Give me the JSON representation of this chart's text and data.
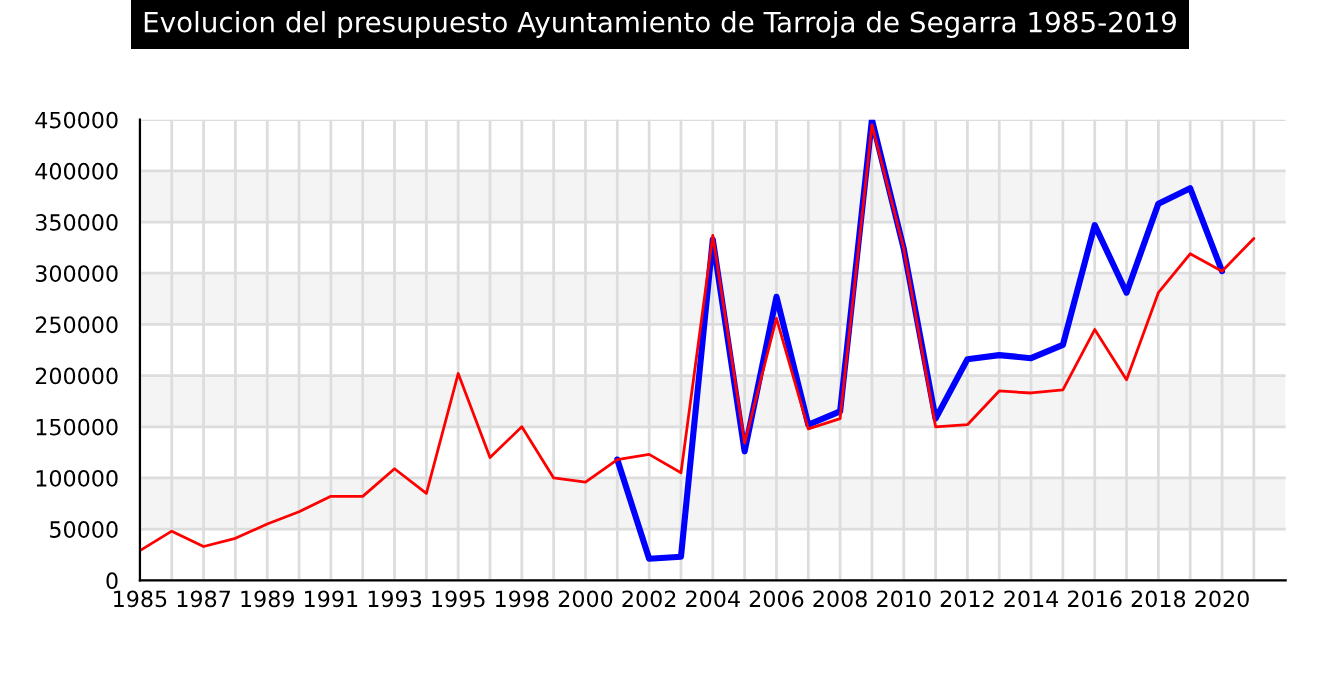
{
  "chart_data": {
    "type": "line",
    "title": "Evolucion del presupuesto Ayuntamiento de Tarroja de Segarra 1985-2019",
    "categories": [
      "1985",
      null,
      "1987",
      null,
      "1989",
      null,
      "1991",
      null,
      "1993",
      null,
      "1995",
      null,
      "1998",
      null,
      "2000",
      null,
      "2002",
      null,
      "2004",
      null,
      "2006",
      null,
      "2008",
      null,
      "2010",
      null,
      "2012",
      null,
      "2014",
      null,
      "2016",
      null,
      "2018",
      null,
      "2020",
      null
    ],
    "series": [
      {
        "color": "#0000ff",
        "values": [
          null,
          null,
          null,
          null,
          null,
          null,
          null,
          null,
          null,
          null,
          null,
          null,
          null,
          null,
          null,
          118000,
          21000,
          23000,
          333000,
          126000,
          277000,
          152000,
          165000,
          450000,
          324000,
          158000,
          216000,
          220000,
          217000,
          230000,
          347000,
          281000,
          368000,
          383000,
          302000,
          null
        ]
      },
      {
        "color": "#ff0000",
        "values": [
          29000,
          48000,
          33000,
          41000,
          55000,
          67000,
          82000,
          82000,
          109000,
          85000,
          202000,
          120000,
          150000,
          100000,
          96000,
          118000,
          123000,
          105000,
          337000,
          134000,
          256000,
          148000,
          158000,
          445000,
          324000,
          150000,
          152000,
          185000,
          183000,
          186000,
          245000,
          196000,
          281000,
          319000,
          302000,
          334000
        ]
      }
    ],
    "ylim": [
      0,
      450000
    ],
    "yticks": [
      0,
      50000,
      100000,
      150000,
      200000,
      250000,
      300000,
      350000,
      400000,
      450000
    ],
    "grid": true,
    "legend": false,
    "marker": "none",
    "line_style": "solid"
  }
}
